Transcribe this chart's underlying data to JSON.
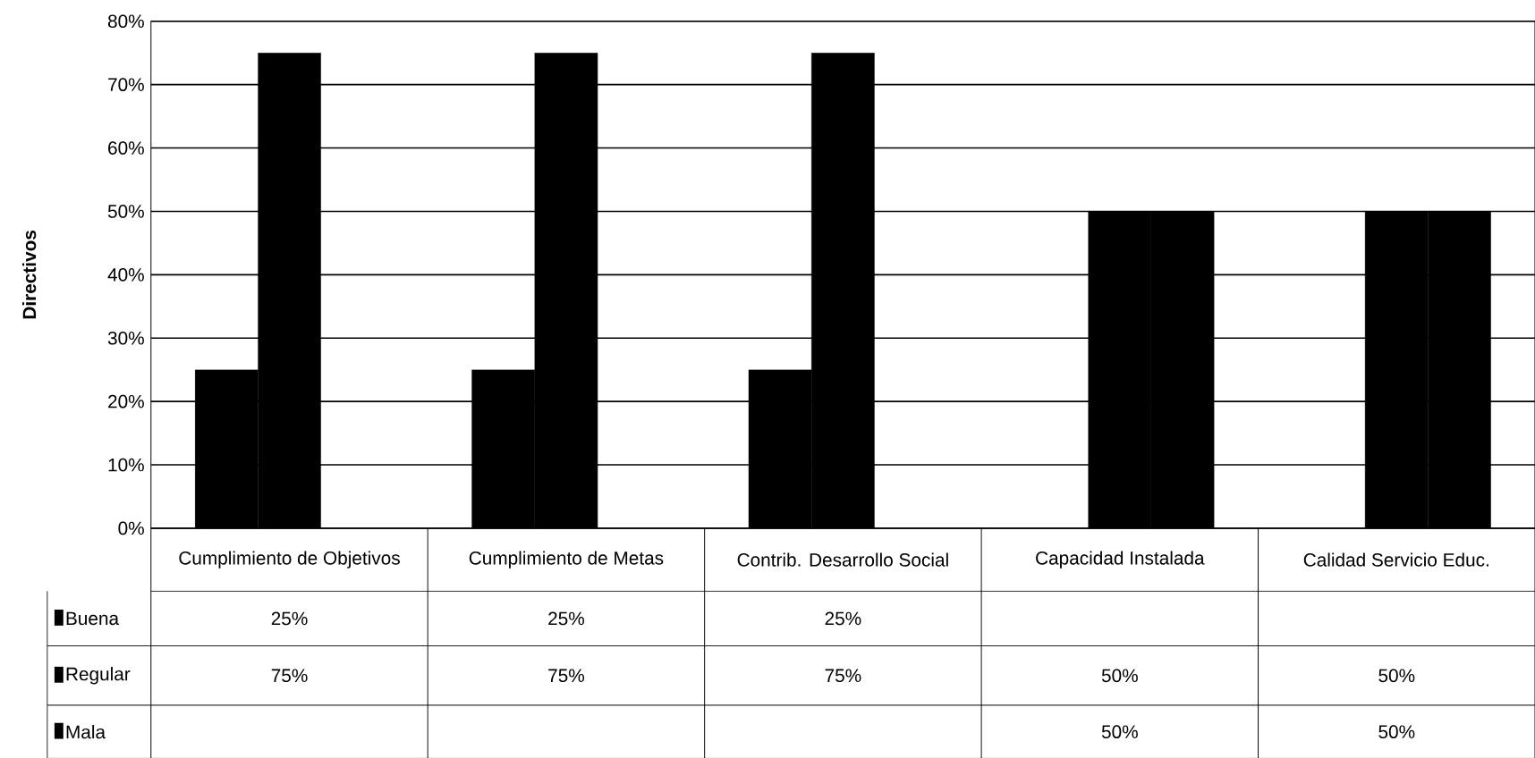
{
  "chart_data": {
    "type": "bar",
    "ylabel": "Directivos",
    "categories": [
      "Cumplimiento de Objetivos",
      "Cumplimiento de Metas",
      "Contrib. Desarrollo Social",
      "Capacidad Instalada",
      "Calidad Servicio Educ."
    ],
    "series": [
      {
        "name": "Buena",
        "color": "#000000",
        "values": [
          25,
          25,
          25,
          null,
          null
        ],
        "value_labels": [
          "25%",
          "25%",
          "25%",
          null,
          null
        ]
      },
      {
        "name": "Regular",
        "color": "#000000",
        "values": [
          75,
          75,
          75,
          50,
          50
        ],
        "value_labels": [
          "75%",
          "75%",
          "75%",
          "50%",
          "50%"
        ]
      },
      {
        "name": "Mala",
        "color": "#000000",
        "values": [
          null,
          null,
          null,
          50,
          50
        ],
        "value_labels": [
          null,
          null,
          null,
          "50%",
          "50%"
        ]
      }
    ],
    "ylim": [
      0,
      80
    ],
    "yticks": [
      {
        "value": 0,
        "label": "0%"
      },
      {
        "value": 10,
        "label": "10%"
      },
      {
        "value": 20,
        "label": "20%"
      },
      {
        "value": 30,
        "label": "30%"
      },
      {
        "value": 40,
        "label": "40%"
      },
      {
        "value": 50,
        "label": "50%"
      },
      {
        "value": 60,
        "label": "60%"
      },
      {
        "value": 70,
        "label": "70%"
      },
      {
        "value": 80,
        "label": "80%"
      }
    ],
    "grid": "y",
    "legend": "bottom left"
  }
}
